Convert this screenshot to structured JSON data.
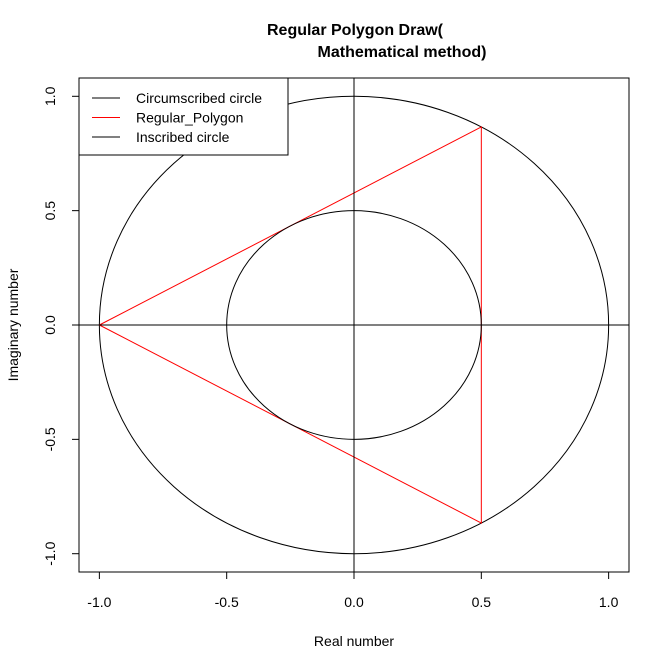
{
  "chart_data": {
    "type": "line",
    "title_line1": "Regular Polygon Draw(",
    "title_line2": "Mathematical method)",
    "xlabel": "Real number",
    "ylabel": "Imaginary number",
    "xlim": [
      -1.08,
      1.08
    ],
    "ylim": [
      -1.08,
      1.08
    ],
    "x_ticks": [
      -1.0,
      -0.5,
      0.0,
      0.5,
      1.0
    ],
    "x_tick_labels": [
      "-1.0",
      "-0.5",
      "0.0",
      "0.5",
      "1.0"
    ],
    "y_ticks": [
      -1.0,
      -0.5,
      0.0,
      0.5,
      1.0
    ],
    "y_tick_labels": [
      "-1.0",
      "-0.5",
      "0.0",
      "0.5",
      "1.0"
    ],
    "grid": false,
    "legend_position": "top-left",
    "legend": [
      {
        "label": "Circumscribed circle",
        "color": "#000000"
      },
      {
        "label": "Regular_Polygon",
        "color": "#ff0000"
      },
      {
        "label": "Inscribed circle",
        "color": "#000000"
      }
    ],
    "series": [
      {
        "name": "Circumscribed circle",
        "shape": "circle",
        "center": [
          0,
          0
        ],
        "radius": 1.0,
        "color": "#000000"
      },
      {
        "name": "Regular_Polygon",
        "shape": "polygon",
        "color": "#ff0000",
        "x": [
          -1.0,
          0.5,
          0.5,
          -1.0
        ],
        "y": [
          0.0,
          0.866,
          -0.866,
          0.0
        ]
      },
      {
        "name": "Inscribed circle",
        "shape": "circle",
        "center": [
          0,
          0
        ],
        "radius": 0.5,
        "color": "#000000"
      }
    ],
    "reference_lines": [
      {
        "orientation": "horizontal",
        "value": 0,
        "color": "#000000"
      },
      {
        "orientation": "vertical",
        "value": 0,
        "color": "#000000"
      }
    ]
  }
}
